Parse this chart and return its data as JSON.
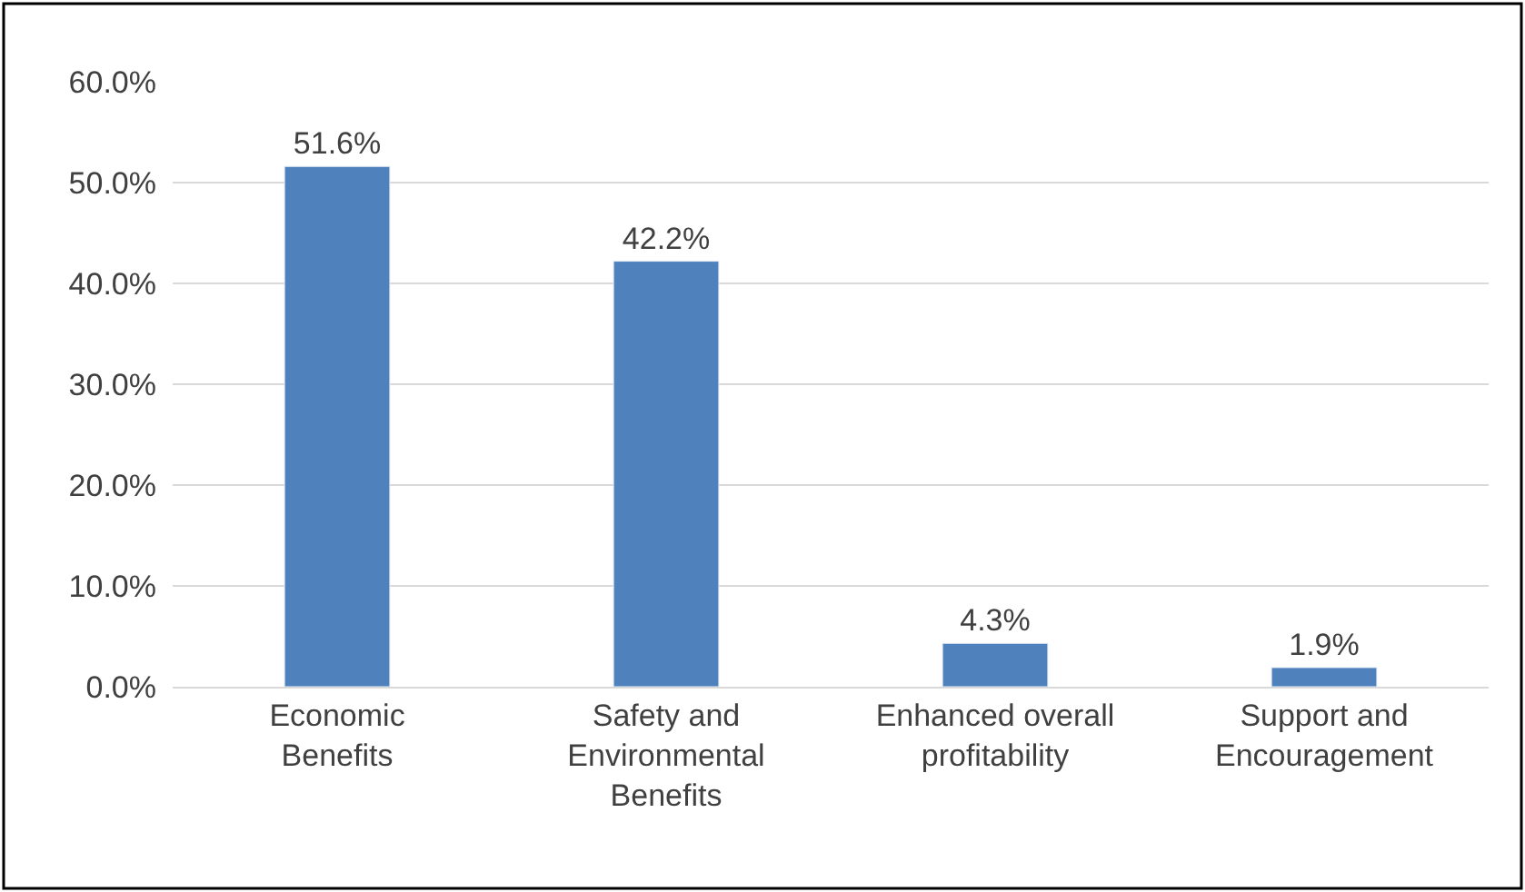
{
  "chart_data": {
    "type": "bar",
    "categories": [
      "Economic\nBenefits",
      "Safety and\nEnvironmental\nBenefits",
      "Enhanced overall\nprofitability",
      "Support and\nEncouragement"
    ],
    "values": [
      51.6,
      42.2,
      4.3,
      1.9
    ],
    "value_labels": [
      "51.6%",
      "42.2%",
      "4.3%",
      "1.9%"
    ],
    "color": "#4f81bd",
    "ylim": [
      0,
      60
    ],
    "yticks": [
      {
        "value": 0,
        "label": "0.0%"
      },
      {
        "value": 10,
        "label": "10.0%"
      },
      {
        "value": 20,
        "label": "20.0%"
      },
      {
        "value": 30,
        "label": "30.0%"
      },
      {
        "value": 40,
        "label": "40.0%"
      },
      {
        "value": 50,
        "label": "50.0%"
      },
      {
        "value": 60,
        "label": "60.0%"
      }
    ],
    "grid": "y",
    "legend": false
  }
}
